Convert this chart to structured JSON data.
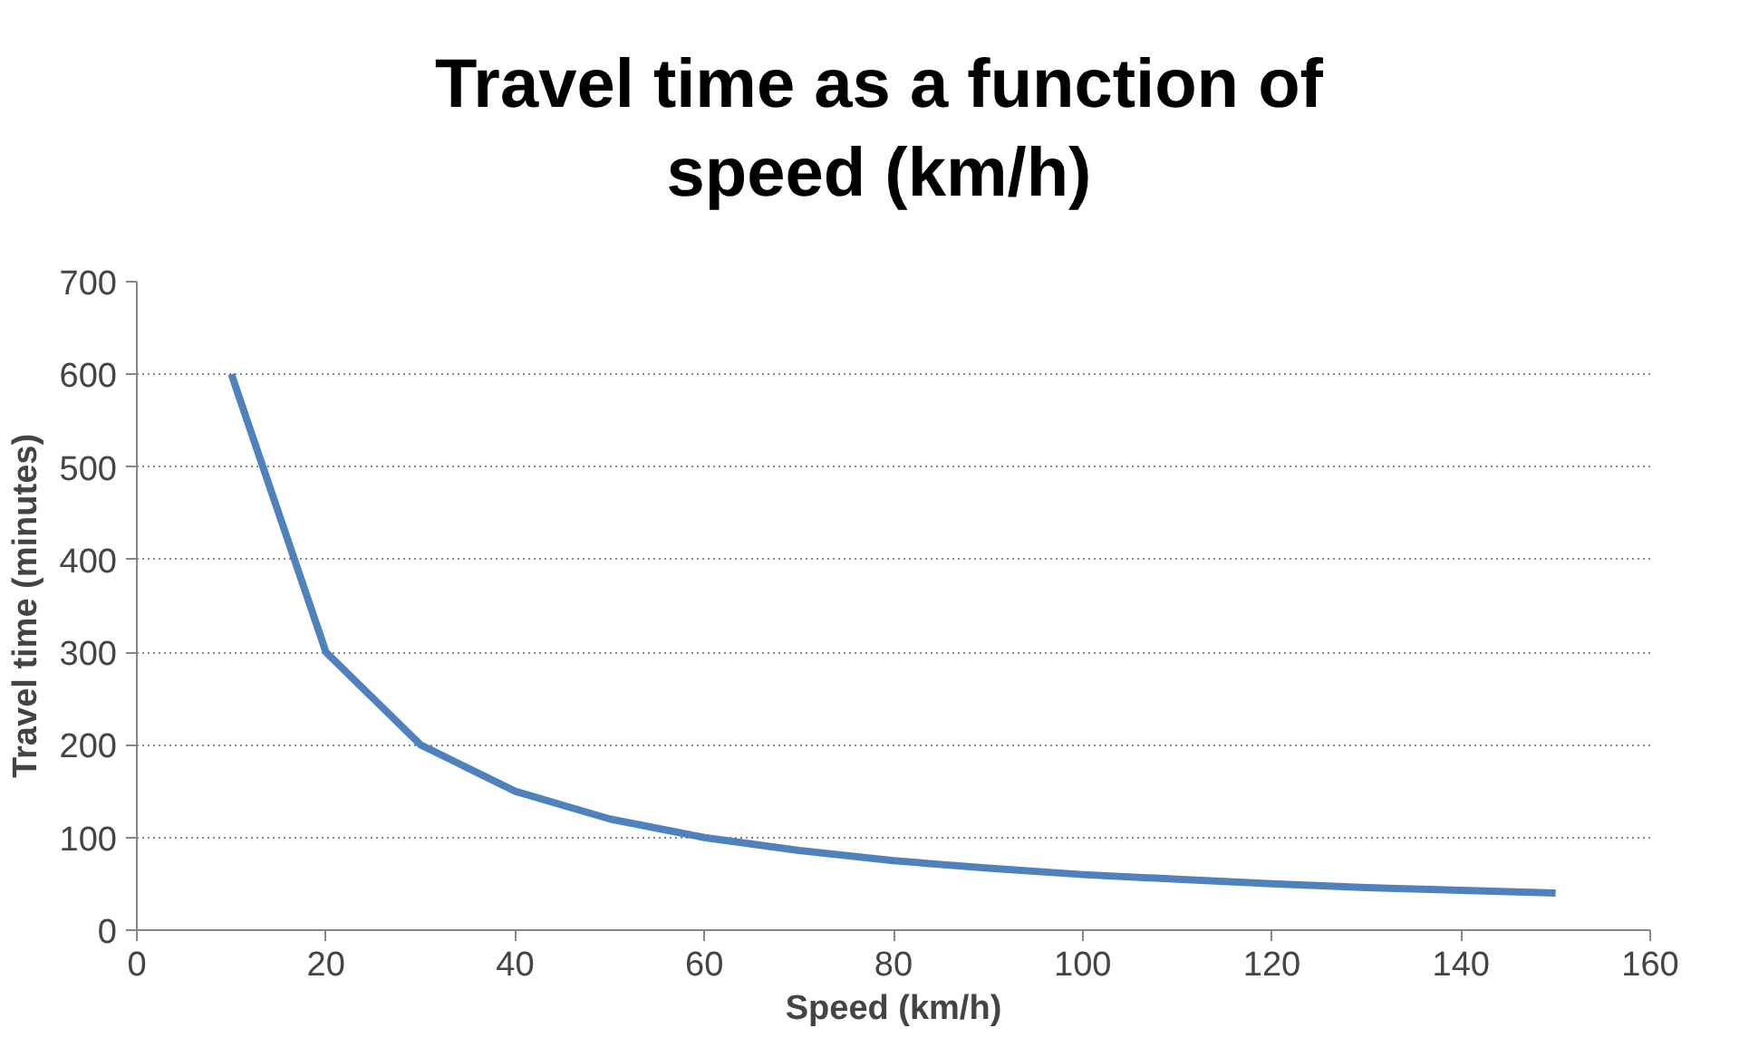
{
  "chart_data": {
    "type": "line",
    "title": "Travel time as a function of speed (km/h)",
    "xlabel": "Speed (km/h)",
    "ylabel": "Travel time (minutes)",
    "x": [
      10,
      20,
      30,
      40,
      50,
      60,
      70,
      80,
      90,
      100,
      110,
      120,
      130,
      140,
      150
    ],
    "series": [
      {
        "color": "#4f81bd",
        "values": [
          600,
          300,
          200,
          150,
          120,
          100,
          86,
          75,
          67,
          60,
          55,
          50,
          46,
          43,
          40
        ]
      }
    ],
    "xlim": [
      0,
      160
    ],
    "xticks": [
      0,
      20,
      40,
      60,
      80,
      100,
      120,
      140,
      160
    ],
    "ylim": [
      0,
      700
    ],
    "yticks": [
      0,
      100,
      200,
      300,
      400,
      500,
      600,
      700
    ],
    "grid": "y",
    "marker": "none",
    "line_style": "solid"
  }
}
